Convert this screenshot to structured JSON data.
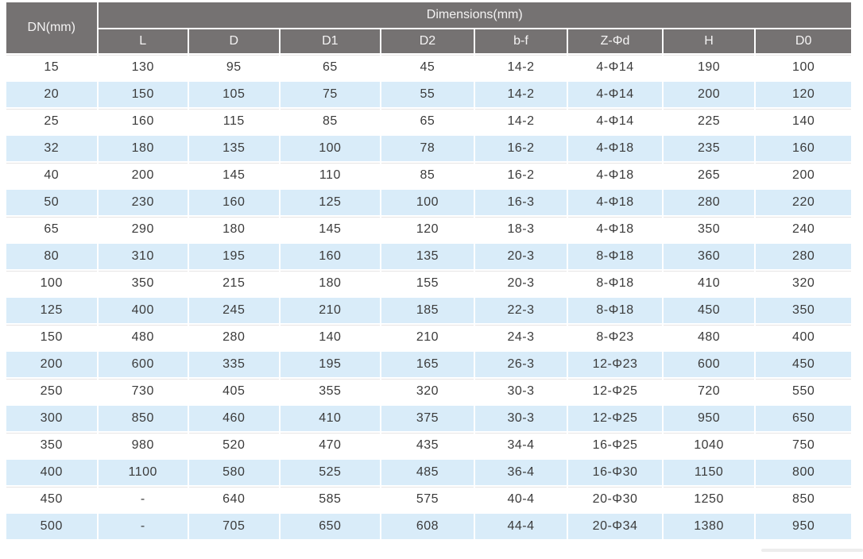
{
  "table": {
    "corner_header": "DN(mm)",
    "group_header": "Dimensions(mm)",
    "columns": [
      "L",
      "D",
      "D1",
      "D2",
      "b-f",
      "Z-Φd",
      "H",
      "D0"
    ],
    "rows": [
      [
        "15",
        "130",
        "95",
        "65",
        "45",
        "14-2",
        "4-Φ14",
        "190",
        "100"
      ],
      [
        "20",
        "150",
        "105",
        "75",
        "55",
        "14-2",
        "4-Φ14",
        "200",
        "120"
      ],
      [
        "25",
        "160",
        "115",
        "85",
        "65",
        "14-2",
        "4-Φ14",
        "225",
        "140"
      ],
      [
        "32",
        "180",
        "135",
        "100",
        "78",
        "16-2",
        "4-Φ18",
        "235",
        "160"
      ],
      [
        "40",
        "200",
        "145",
        "110",
        "85",
        "16-2",
        "4-Φ18",
        "265",
        "200"
      ],
      [
        "50",
        "230",
        "160",
        "125",
        "100",
        "16-3",
        "4-Φ18",
        "280",
        "220"
      ],
      [
        "65",
        "290",
        "180",
        "145",
        "120",
        "18-3",
        "4-Φ18",
        "350",
        "240"
      ],
      [
        "80",
        "310",
        "195",
        "160",
        "135",
        "20-3",
        "8-Φ18",
        "360",
        "280"
      ],
      [
        "100",
        "350",
        "215",
        "180",
        "155",
        "20-3",
        "8-Φ18",
        "410",
        "320"
      ],
      [
        "125",
        "400",
        "245",
        "210",
        "185",
        "22-3",
        "8-Φ18",
        "450",
        "350"
      ],
      [
        "150",
        "480",
        "280",
        "140",
        "210",
        "24-3",
        "8-Φ23",
        "480",
        "400"
      ],
      [
        "200",
        "600",
        "335",
        "195",
        "165",
        "26-3",
        "12-Φ23",
        "600",
        "450"
      ],
      [
        "250",
        "730",
        "405",
        "355",
        "320",
        "30-3",
        "12-Φ25",
        "720",
        "550"
      ],
      [
        "300",
        "850",
        "460",
        "410",
        "375",
        "30-3",
        "12-Φ25",
        "950",
        "650"
      ],
      [
        "350",
        "980",
        "520",
        "470",
        "435",
        "34-4",
        "16-Φ25",
        "1040",
        "750"
      ],
      [
        "400",
        "1100",
        "580",
        "525",
        "485",
        "36-4",
        "16-Φ30",
        "1150",
        "800"
      ],
      [
        "450",
        "-",
        "640",
        "585",
        "575",
        "40-4",
        "20-Φ30",
        "1250",
        "850"
      ],
      [
        "500",
        "-",
        "705",
        "650",
        "608",
        "44-4",
        "20-Φ34",
        "1380",
        "950"
      ]
    ]
  },
  "colors": {
    "header_bg": "#757272",
    "header_text": "#f4f3f3",
    "stripe_bg": "#d9ecf9",
    "body_text": "#3b3b3b",
    "hairline": "#e7e5e5"
  }
}
